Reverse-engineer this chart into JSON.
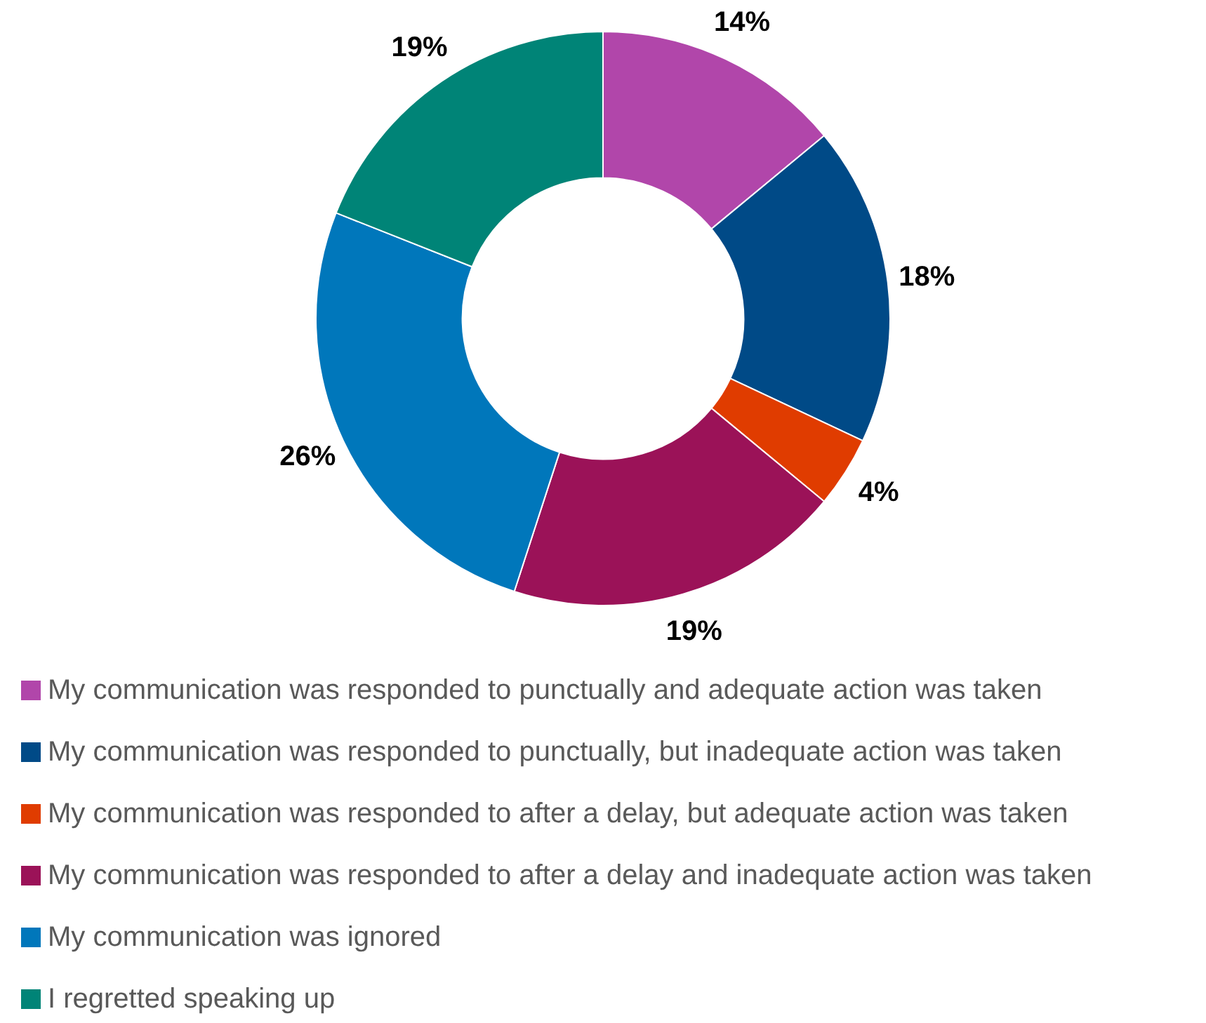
{
  "chart_data": {
    "type": "donut",
    "categories": [
      "My communication was responded to punctually and adequate action was taken",
      "My communication was responded to punctually, but inadequate action was taken",
      "My communication was responded to after a delay, but adequate action was taken",
      "My communication was responded to after a delay and inadequate action was taken",
      "My communication was ignored",
      "I regretted speaking up"
    ],
    "values": [
      14,
      18,
      4,
      19,
      26,
      19
    ],
    "value_labels": [
      "14%",
      "18%",
      "4%",
      "19%",
      "26%",
      "19%"
    ],
    "colors": [
      "#b146aa",
      "#004a87",
      "#e03c00",
      "#9b1258",
      "#0077bb",
      "#008477"
    ],
    "legend": "bottom"
  }
}
